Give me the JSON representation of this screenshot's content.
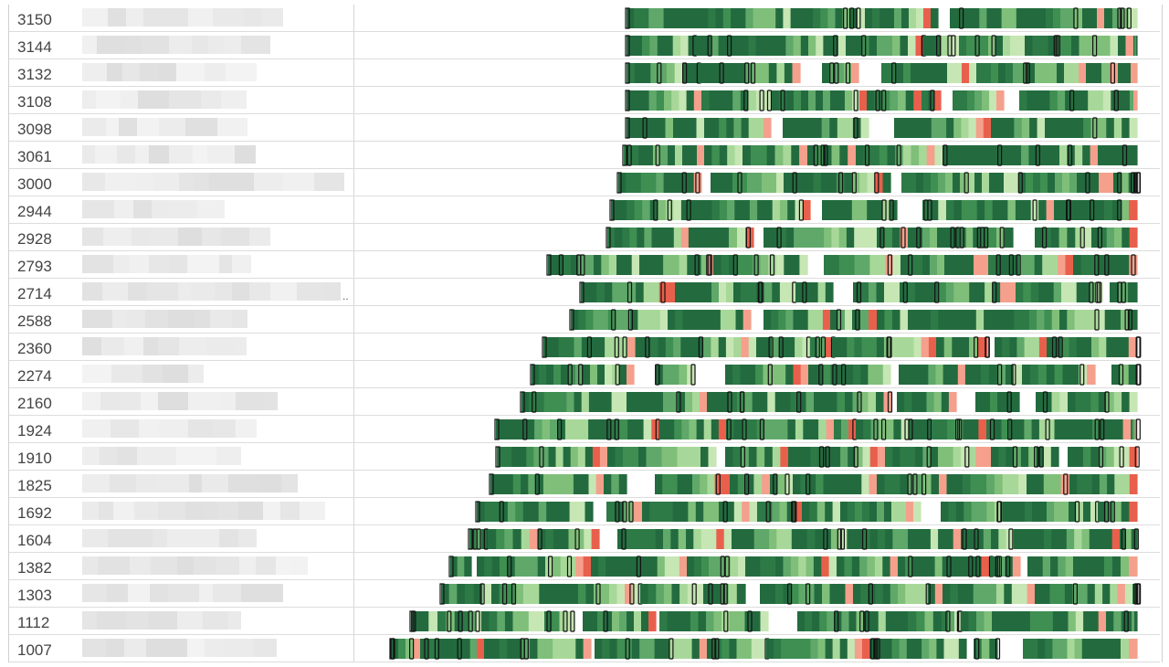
{
  "chart_data": {
    "type": "table",
    "row_label_column": "",
    "truncation_marker": "..",
    "rows": [
      "3150",
      "3144",
      "3132",
      "3108",
      "3098",
      "3061",
      "3000",
      "2944",
      "2928",
      "2793",
      "2714",
      "2588",
      "2360",
      "2274",
      "2160",
      "1924",
      "1910",
      "1825",
      "1692",
      "1604",
      "1382",
      "1303",
      "1112",
      "1007"
    ],
    "colors": {
      "dark_green": "#236b3f",
      "mid_green": "#5fa86a",
      "light_green": "#a8d899",
      "salmon": "#f4a08c",
      "red": "#e8604c",
      "marker_stroke": "#111111"
    }
  }
}
